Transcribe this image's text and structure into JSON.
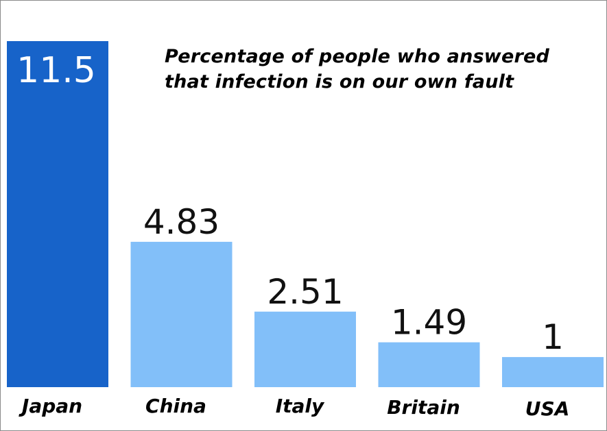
{
  "chart_data": {
    "type": "bar",
    "title": "Percentage of people who answered that infection is on our own fault",
    "categories": [
      "Japan",
      "China",
      "Italy",
      "Britain",
      "USA"
    ],
    "values": [
      11.5,
      4.83,
      2.51,
      1.49,
      1
    ],
    "value_labels": [
      "11.5",
      "4.83",
      "2.51",
      "1.49",
      "1"
    ],
    "xlabel": "",
    "ylabel": "",
    "ylim": [
      0,
      11.5
    ],
    "grid": false,
    "colors": {
      "highlight": "#1763c9",
      "default": "#82bff9",
      "highlight_label": "#ffffff",
      "default_label": "#111111",
      "category_label": "#000000"
    },
    "highlight_index": 0
  }
}
